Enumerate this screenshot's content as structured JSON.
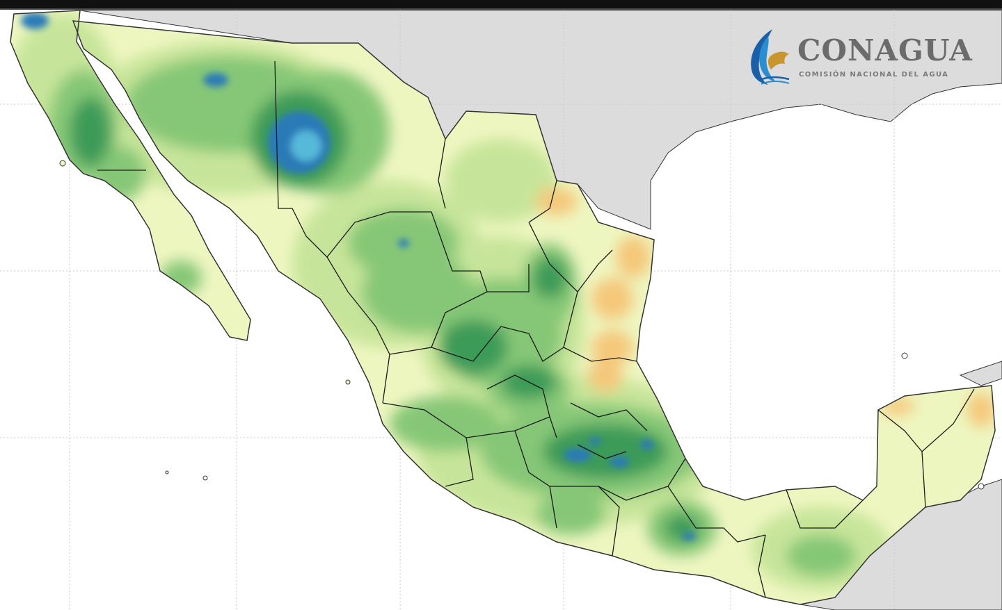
{
  "logo": {
    "title": "CONAGUA",
    "subtitle": "COMISIÓN NACIONAL DEL AGUA",
    "icon": "conagua-emblem-icon",
    "title_color": "#6b6b6b",
    "subtitle_color": "#7a7a7a",
    "mark_colors": [
      "#1a5fa8",
      "#2a8fd1",
      "#c9962e"
    ]
  },
  "map": {
    "type": "precipitation-anomaly-map",
    "region": "Mexico",
    "colors": {
      "land_background": "#dcdcdc",
      "ocean": "#ffffff",
      "near_normal": "#eef6c0",
      "slightly_wet": "#c7e59a",
      "wet": "#86c777",
      "very_wet": "#3e9b58",
      "extreme_wet": "#2c7ab8",
      "extreme_wet_core": "#56b9d9",
      "dry": "#f5c77a",
      "grid": "#c8c8c8",
      "borders": "#222222"
    },
    "grid": true,
    "legend": "none"
  }
}
